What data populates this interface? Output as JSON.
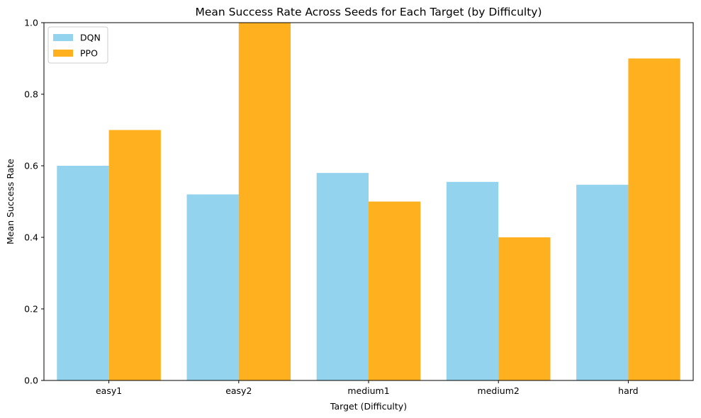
{
  "chart_data": {
    "type": "bar",
    "title": "Mean Success Rate Across Seeds for Each Target (by Difficulty)",
    "xlabel": "Target (Difficulty)",
    "ylabel": "Mean Success Rate",
    "categories": [
      "easy1",
      "easy2",
      "medium1",
      "medium2",
      "hard"
    ],
    "series": [
      {
        "name": "DQN",
        "color": "#87CEEB",
        "values": [
          0.6,
          0.52,
          0.58,
          0.555,
          0.547
        ]
      },
      {
        "name": "PPO",
        "color": "#FFA500",
        "values": [
          0.7,
          1.0,
          0.5,
          0.4,
          0.9
        ]
      }
    ],
    "ylim": [
      0,
      1.0
    ],
    "yticks": [
      "0.0",
      "0.2",
      "0.4",
      "0.6",
      "0.8",
      "1.0"
    ],
    "grid": false,
    "legend": "top-left"
  }
}
